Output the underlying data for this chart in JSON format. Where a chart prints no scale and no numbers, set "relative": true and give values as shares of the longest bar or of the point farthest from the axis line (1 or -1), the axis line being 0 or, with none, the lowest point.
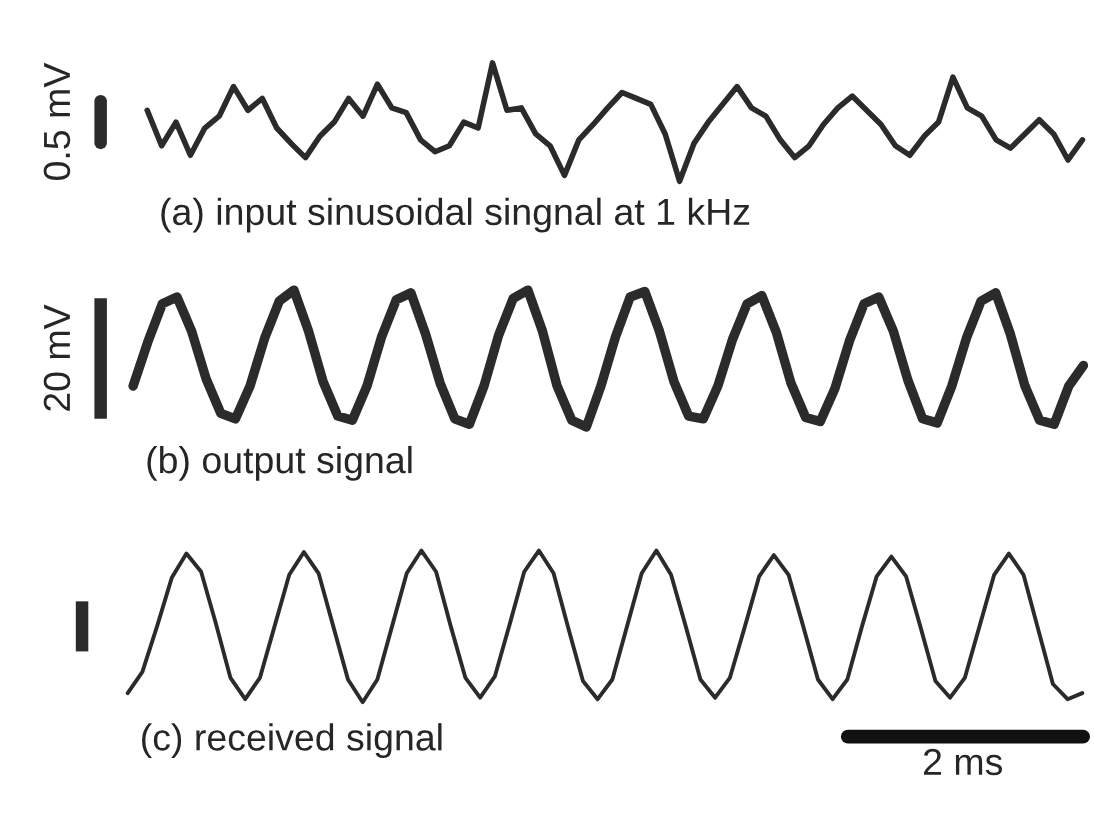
{
  "chart_data": [
    {
      "type": "line",
      "title": "(a) input sinusoidal singnal at 1 kHz",
      "relative": true,
      "annotations": [
        "0.5 mV"
      ],
      "categories": [
        null,
        null,
        null,
        null,
        null,
        null,
        null,
        null,
        null,
        null,
        null,
        null,
        null,
        null,
        null,
        null,
        null,
        null,
        null,
        null,
        null,
        null,
        null,
        null,
        null,
        null,
        null,
        null,
        null,
        null,
        null,
        null,
        null,
        null,
        null,
        null,
        null,
        null,
        null,
        null,
        null,
        null,
        null,
        null,
        null,
        null,
        null,
        null,
        null,
        null,
        null,
        null,
        null,
        null,
        null,
        null,
        null,
        null,
        null,
        null,
        null,
        null,
        null,
        null,
        null,
        null
      ],
      "series": [
        {
          "color": "#2b2b2b",
          "values": [
            0.6,
            0.3,
            0.5,
            0.22,
            0.45,
            0.55,
            0.8,
            0.6,
            0.7,
            0.45,
            0.32,
            0.2,
            0.38,
            0.5,
            0.7,
            0.55,
            0.82,
            0.62,
            0.58,
            0.35,
            0.25,
            0.3,
            0.5,
            0.45,
            1,
            0.6,
            0.62,
            0.4,
            0.3,
            0.05,
            0.35,
            0.48,
            0.62,
            0.75,
            0.7,
            0.65,
            0.4,
            0.0,
            0.32,
            0.5,
            0.65,
            0.8,
            0.62,
            0.55,
            0.35,
            0.2,
            0.3,
            0.48,
            0.62,
            0.72,
            0.6,
            0.48,
            0.3,
            0.22,
            0.38,
            0.5,
            0.88,
            0.62,
            0.55,
            0.35,
            0.28,
            0.4,
            0.52,
            0.4,
            0.18,
            0.35
          ]
        }
      ]
    },
    {
      "type": "line",
      "title": "(b) output signal",
      "relative": true,
      "annotations": [
        "20 mV"
      ],
      "categories": [
        null,
        null,
        null,
        null,
        null,
        null,
        null,
        null,
        null,
        null,
        null,
        null,
        null,
        null,
        null,
        null,
        null,
        null,
        null,
        null,
        null,
        null,
        null,
        null,
        null,
        null,
        null,
        null,
        null,
        null,
        null,
        null,
        null,
        null,
        null,
        null,
        null,
        null,
        null,
        null,
        null,
        null,
        null,
        null,
        null,
        null,
        null,
        null,
        null,
        null,
        null,
        null,
        null,
        null,
        null,
        null,
        null,
        null,
        null,
        null,
        null,
        null,
        null,
        null,
        null,
        null
      ],
      "series": [
        {
          "color": "#2b2b2b",
          "values": [
            0.3,
            0.62,
            0.9,
            0.95,
            0.7,
            0.35,
            0.1,
            0.06,
            0.3,
            0.65,
            0.92,
            1,
            0.7,
            0.33,
            0.08,
            0.05,
            0.3,
            0.66,
            0.93,
            0.98,
            0.68,
            0.32,
            0.06,
            0.02,
            0.3,
            0.67,
            0.94,
            1,
            0.7,
            0.3,
            0.05,
            0.0,
            0.3,
            0.66,
            0.95,
            0.99,
            0.7,
            0.33,
            0.08,
            0.06,
            0.3,
            0.64,
            0.9,
            0.96,
            0.69,
            0.32,
            0.07,
            0.04,
            0.28,
            0.63,
            0.9,
            0.95,
            0.7,
            0.34,
            0.06,
            0.03,
            0.3,
            0.65,
            0.92,
            0.98,
            0.68,
            0.3,
            0.05,
            0.02,
            0.3,
            0.45
          ]
        }
      ]
    },
    {
      "type": "line",
      "title": "(c) received signal",
      "relative": true,
      "annotations": [
        "2 ms"
      ],
      "categories": [
        null,
        null,
        null,
        null,
        null,
        null,
        null,
        null,
        null,
        null,
        null,
        null,
        null,
        null,
        null,
        null,
        null,
        null,
        null,
        null,
        null,
        null,
        null,
        null,
        null,
        null,
        null,
        null,
        null,
        null,
        null,
        null,
        null,
        null,
        null,
        null,
        null,
        null,
        null,
        null,
        null,
        null,
        null,
        null,
        null,
        null,
        null,
        null,
        null,
        null,
        null,
        null,
        null,
        null,
        null,
        null,
        null,
        null,
        null,
        null,
        null,
        null,
        null,
        null,
        null,
        null
      ],
      "series": [
        {
          "color": "#2b2b2b",
          "values": [
            0.06,
            0.2,
            0.5,
            0.82,
            0.98,
            0.86,
            0.52,
            0.16,
            0.02,
            0.16,
            0.5,
            0.84,
            0.99,
            0.85,
            0.5,
            0.15,
            0.0,
            0.15,
            0.5,
            0.85,
            1,
            0.86,
            0.5,
            0.16,
            0.03,
            0.17,
            0.51,
            0.86,
            1,
            0.85,
            0.49,
            0.14,
            0.02,
            0.15,
            0.5,
            0.85,
            1,
            0.84,
            0.5,
            0.15,
            0.03,
            0.16,
            0.49,
            0.83,
            0.97,
            0.84,
            0.5,
            0.15,
            0.02,
            0.15,
            0.5,
            0.83,
            0.96,
            0.83,
            0.49,
            0.14,
            0.03,
            0.16,
            0.5,
            0.84,
            0.98,
            0.84,
            0.48,
            0.12,
            0.02,
            0.06
          ]
        }
      ]
    }
  ]
}
